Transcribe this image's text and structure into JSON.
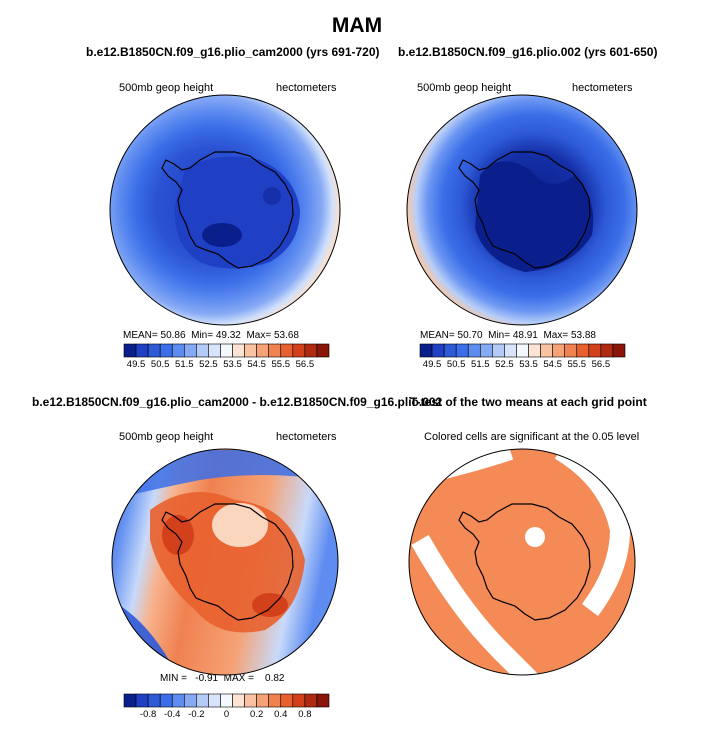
{
  "title": "MAM",
  "panels": [
    {
      "title": "b.e12.B1850CN.f09_g16.plio_cam2000 (yrs 691-720)",
      "left_label": "500mb geop height",
      "right_label": "hectometers",
      "stats": {
        "mean_label": "MEAN=",
        "mean": "50.86",
        "min_label": "Min=",
        "min": "49.32",
        "max_label": "Max=",
        "max": "53.68"
      }
    },
    {
      "title": "b.e12.B1850CN.f09_g16.plio.002 (yrs 601-650)",
      "left_label": "500mb geop height",
      "right_label": "hectometers",
      "stats": {
        "mean_label": "MEAN=",
        "mean": "50.70",
        "min_label": "Min=",
        "min": "48.91",
        "max_label": "Max=",
        "max": "53.88"
      }
    },
    {
      "title": "b.e12.B1850CN.f09_g16.plio_cam2000 - b.e12.B1850CN.f09_g16.plio.002",
      "left_label": "500mb geop height",
      "right_label": "hectometers",
      "stats_text": "MIN =   -0.91  MAX =    0.82"
    },
    {
      "title": "T-test of the two means at each grid point",
      "left_label": "Colored cells are significant at the 0.05 level"
    }
  ],
  "colorbar_abs": {
    "colors": [
      "#0a1f8c",
      "#1f3fc4",
      "#2e5ad8",
      "#3b6ee8",
      "#5e8cf0",
      "#87aaf5",
      "#b4cbf8",
      "#d8e4fb",
      "#f4f8ff",
      "#fce3d3",
      "#f9c3a3",
      "#f5a276",
      "#f08150",
      "#e8602e",
      "#d3401c",
      "#b02a12",
      "#8a1508"
    ],
    "tick_labels": [
      "49.5",
      "50.5",
      "51.5",
      "52.5",
      "53.5",
      "54.5",
      "55.5",
      "56.5"
    ]
  },
  "colorbar_diff": {
    "colors": [
      "#0a1f8c",
      "#1f3fc4",
      "#2e5ad8",
      "#3b6ee8",
      "#5e8cf0",
      "#87aaf5",
      "#b4cbf8",
      "#d8e4fb",
      "#f4f8ff",
      "#fce3d3",
      "#f9c3a3",
      "#f5a276",
      "#f08150",
      "#e8602e",
      "#d3401c",
      "#b02a12",
      "#8a1508"
    ],
    "tick_labels": [
      "-0.8",
      "-0.4",
      "-0.2",
      "0",
      "0.2",
      "0.4",
      "0.8"
    ]
  }
}
